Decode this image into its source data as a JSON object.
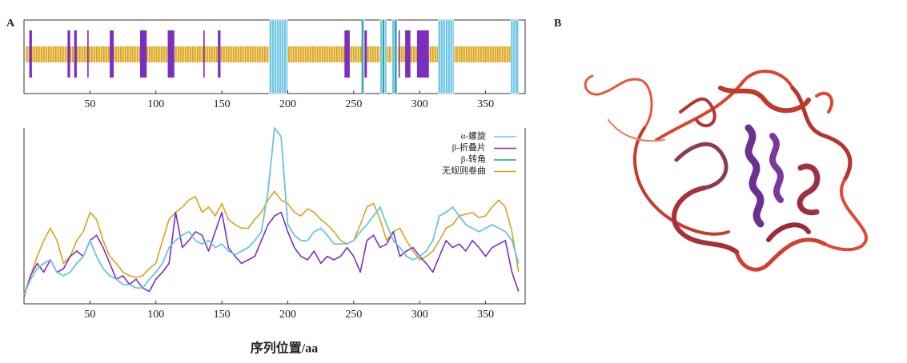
{
  "panels": {
    "a": "A",
    "b": "B"
  },
  "chart_data": [
    {
      "type": "track",
      "xlim": [
        0,
        380
      ],
      "xticks": [
        50,
        100,
        150,
        200,
        250,
        300,
        350
      ],
      "series": [
        {
          "color": "#6ec6e6",
          "ranges": [
            [
              186,
              200
            ],
            [
              257,
              258
            ],
            [
              270,
              275
            ],
            [
              279,
              283
            ],
            [
              314,
              326
            ],
            [
              369,
              375
            ]
          ]
        },
        {
          "color": "#7b2fbf",
          "ranges": [
            [
              4,
              6
            ],
            [
              33,
              35
            ],
            [
              38,
              40
            ],
            [
              48,
              49
            ],
            [
              65,
              68
            ],
            [
              88,
              93
            ],
            [
              109,
              114
            ],
            [
              136,
              137
            ],
            [
              147,
              149
            ],
            [
              243,
              247
            ],
            [
              258,
              260
            ],
            [
              284,
              285
            ],
            [
              289,
              293
            ],
            [
              298,
              307
            ]
          ]
        },
        {
          "color": "#1a9a8a",
          "ranges": [
            [
              256,
              257
            ],
            [
              272,
              273
            ],
            [
              281,
              282
            ]
          ]
        },
        {
          "color": "#d9a21c",
          "ranges": [
            [
              1,
              375
            ]
          ]
        }
      ]
    },
    {
      "type": "line",
      "xlabel": "序列位置/aa",
      "xlim": [
        0,
        380
      ],
      "ylim": [
        0,
        10
      ],
      "xticks": [
        50,
        100,
        150,
        200,
        250,
        300,
        350
      ],
      "legend": "upper right",
      "x": [
        0,
        5,
        10,
        15,
        20,
        25,
        30,
        35,
        40,
        45,
        50,
        55,
        60,
        65,
        70,
        75,
        80,
        85,
        90,
        95,
        100,
        105,
        110,
        115,
        120,
        125,
        130,
        135,
        140,
        145,
        150,
        155,
        160,
        165,
        170,
        175,
        180,
        185,
        190,
        195,
        200,
        205,
        210,
        215,
        220,
        225,
        230,
        235,
        240,
        245,
        250,
        255,
        260,
        265,
        270,
        275,
        280,
        285,
        290,
        295,
        300,
        305,
        310,
        315,
        320,
        325,
        330,
        335,
        340,
        345,
        350,
        355,
        360,
        365,
        370,
        375
      ],
      "series": [
        {
          "name": "α-螺旋",
          "color": "#6ec6e6",
          "values": [
            0.5,
            1.4,
            2.0,
            2.3,
            2.5,
            1.8,
            1.6,
            1.8,
            2.3,
            2.7,
            3.6,
            2.7,
            2.0,
            1.6,
            1.4,
            1.1,
            1.1,
            0.9,
            0.9,
            1.4,
            1.8,
            2.3,
            3.2,
            3.6,
            3.9,
            4.1,
            3.6,
            3.4,
            3.6,
            3.2,
            3.4,
            3.0,
            2.8,
            3.0,
            3.2,
            3.6,
            4.1,
            6.4,
            10.0,
            9.5,
            4.5,
            3.9,
            3.6,
            3.6,
            4.1,
            4.3,
            3.9,
            3.4,
            3.4,
            3.4,
            3.6,
            4.1,
            4.5,
            5.0,
            5.5,
            4.5,
            3.6,
            3.2,
            2.7,
            2.5,
            2.7,
            3.0,
            3.6,
            5.0,
            5.2,
            5.5,
            5.0,
            4.5,
            4.3,
            4.1,
            4.3,
            4.5,
            4.3,
            4.1,
            3.6,
            2.3
          ]
        },
        {
          "name": "β-折叠片",
          "color": "#7b2fbf",
          "values": [
            0.4,
            1.6,
            2.3,
            1.8,
            2.5,
            1.8,
            2.0,
            2.7,
            3.0,
            2.7,
            3.6,
            3.9,
            3.2,
            2.3,
            1.4,
            1.6,
            1.1,
            1.4,
            0.9,
            0.7,
            1.4,
            1.8,
            2.3,
            5.2,
            3.2,
            3.6,
            4.1,
            3.9,
            3.0,
            4.1,
            5.2,
            3.2,
            2.7,
            2.3,
            2.5,
            2.7,
            3.6,
            4.5,
            5.0,
            5.2,
            4.1,
            3.2,
            2.7,
            2.5,
            3.0,
            2.3,
            2.7,
            2.5,
            2.7,
            3.2,
            2.7,
            1.8,
            3.6,
            3.9,
            3.2,
            3.4,
            4.1,
            2.7,
            3.0,
            3.2,
            2.7,
            2.3,
            1.8,
            2.7,
            3.6,
            3.2,
            3.4,
            3.0,
            3.6,
            3.2,
            2.7,
            3.2,
            3.4,
            3.6,
            1.8,
            0.7
          ]
        },
        {
          "name": "β-转角",
          "color": "#1a9a8a",
          "values": [
            0.5,
            1.4,
            2.0,
            2.3,
            2.5,
            1.8,
            1.6,
            1.8,
            2.3,
            2.7,
            3.6,
            2.7,
            2.0,
            1.6,
            1.4,
            1.1,
            1.1,
            0.9,
            0.9,
            1.4,
            1.8,
            2.3,
            3.2,
            3.6,
            3.9,
            4.1,
            3.6,
            3.4,
            3.6,
            3.2,
            3.4,
            3.0,
            2.8,
            3.0,
            3.2,
            3.6,
            4.1,
            6.4,
            10.0,
            9.5,
            4.5,
            3.9,
            3.6,
            3.6,
            4.1,
            4.3,
            3.9,
            3.4,
            3.4,
            3.4,
            3.6,
            4.1,
            4.5,
            5.0,
            5.5,
            4.5,
            3.6,
            3.2,
            2.7,
            2.5,
            2.7,
            3.0,
            3.6,
            5.0,
            5.2,
            5.5,
            5.0,
            4.5,
            4.3,
            4.1,
            4.3,
            4.5,
            4.3,
            4.1,
            3.6,
            2.3
          ]
        },
        {
          "name": "无规则卷曲",
          "color": "#d9a21c",
          "values": [
            0.5,
            1.6,
            2.7,
            3.6,
            4.3,
            3.6,
            2.3,
            2.7,
            3.6,
            4.1,
            5.2,
            4.8,
            3.6,
            2.7,
            2.3,
            1.8,
            1.6,
            1.5,
            1.6,
            2.0,
            2.3,
            3.6,
            4.8,
            5.2,
            5.5,
            5.9,
            6.1,
            5.2,
            5.5,
            5.0,
            5.7,
            4.8,
            4.5,
            4.3,
            4.3,
            4.8,
            5.2,
            5.9,
            6.4,
            5.9,
            5.7,
            5.2,
            5.0,
            5.4,
            5.2,
            4.8,
            4.5,
            4.1,
            3.6,
            3.4,
            3.6,
            4.5,
            5.5,
            5.7,
            4.8,
            3.6,
            4.1,
            4.3,
            3.6,
            3.0,
            2.5,
            2.7,
            3.0,
            3.6,
            4.3,
            4.5,
            5.0,
            5.1,
            5.2,
            4.9,
            5.0,
            5.5,
            5.9,
            5.5,
            4.1,
            1.8
          ]
        }
      ]
    }
  ]
}
